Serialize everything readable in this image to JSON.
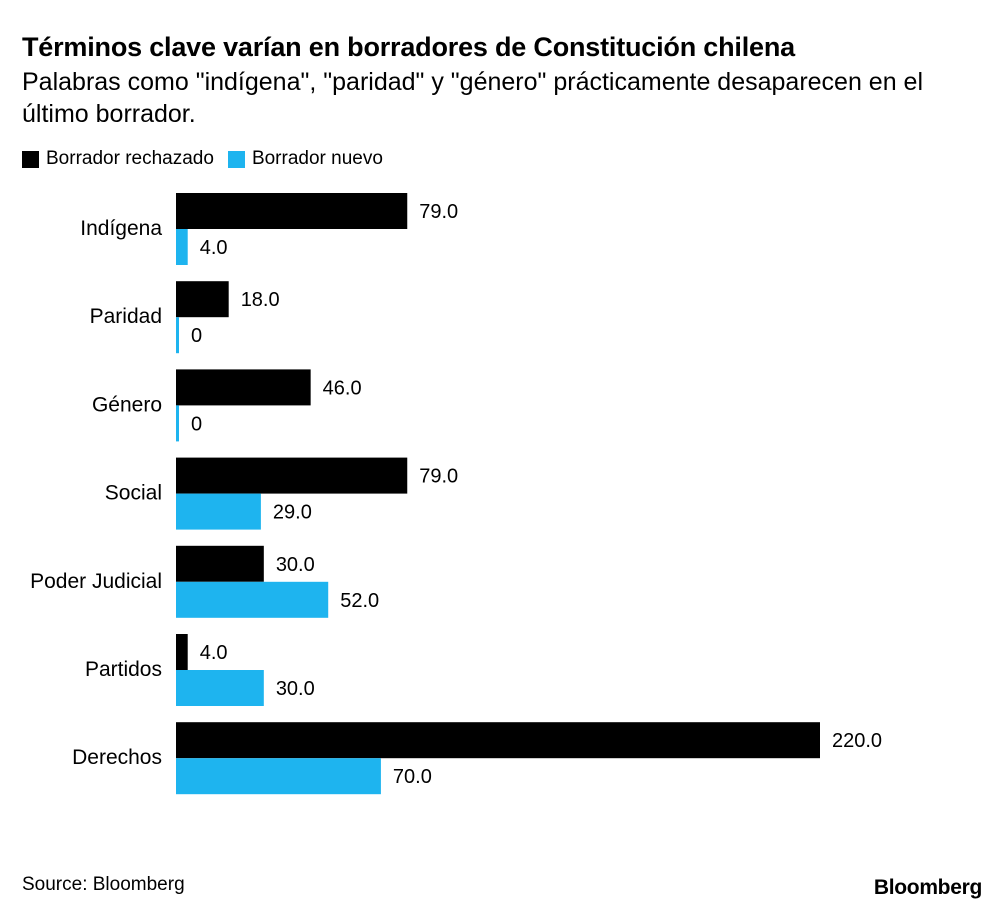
{
  "chart_data": {
    "type": "bar",
    "orientation": "horizontal",
    "title": "Términos clave varían en borradores de Constitución chilena",
    "subtitle": "Palabras como \"indígena\", \"paridad\" y \"género\" prácticamente desaparecen en el último borrador.",
    "categories": [
      "Indígena",
      "Paridad",
      "Género",
      "Social",
      "Poder Judicial",
      "Partidos",
      "Derechos"
    ],
    "series": [
      {
        "name": "Borrador rechazado",
        "color": "#000000",
        "values": [
          79.0,
          18.0,
          46.0,
          79.0,
          30.0,
          4.0,
          220.0
        ],
        "labels": [
          "79.0",
          "18.0",
          "46.0",
          "79.0",
          "30.0",
          "4.0",
          "220.0"
        ]
      },
      {
        "name": "Borrador nuevo",
        "color": "#1eb4ef",
        "values": [
          4.0,
          0,
          0,
          29.0,
          52.0,
          30.0,
          70.0
        ],
        "labels": [
          "4.0",
          "0",
          "0",
          "29.0",
          "52.0",
          "30.0",
          "70.0"
        ]
      }
    ],
    "xlim": [
      0,
      220
    ],
    "legend_position": "top-left",
    "grid": false
  },
  "footer": {
    "source": "Source: Bloomberg",
    "brand": "Bloomberg"
  }
}
